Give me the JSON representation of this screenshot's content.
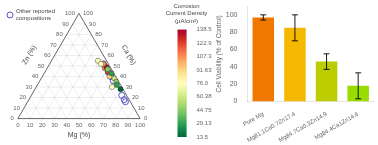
{
  "chart_data": [
    {
      "type": "ternary",
      "axes": {
        "mg": {
          "label": "Mg (%)",
          "lim": [
            0,
            100
          ],
          "ticks": [
            0,
            10,
            20,
            30,
            40,
            50,
            60,
            70,
            80,
            90,
            100
          ]
        },
        "zn": {
          "label": "Zn (%)",
          "lim": [
            0,
            100
          ],
          "ticks": [
            0,
            10,
            20,
            30,
            40,
            50,
            60,
            70,
            80,
            90,
            100
          ]
        },
        "ca": {
          "label": "Ca (%)",
          "lim": [
            0,
            100
          ],
          "ticks": [
            0,
            10,
            20,
            30,
            40,
            50,
            60,
            70,
            80,
            90,
            100
          ]
        }
      },
      "grid": true,
      "legend": "upper left",
      "series": [
        {
          "marker": "circle",
          "values": [
            {
              "mg": 47,
              "ca": 5,
              "zn": 48,
              "value": 107.3
            },
            {
              "mg": 52,
              "ca": 4,
              "zn": 44,
              "value": 122.9
            },
            {
              "mg": 55,
              "ca": 5,
              "zn": 40,
              "value": 91.63
            },
            {
              "mg": 48,
              "ca": 3,
              "zn": 49,
              "value": 138.5
            },
            {
              "mg": 44,
              "ca": 4,
              "zn": 52,
              "value": 107.3
            },
            {
              "mg": 60,
              "ca": 2,
              "zn": 38,
              "value": 60.38
            },
            {
              "mg": 63,
              "ca": 2,
              "zn": 35,
              "value": 44.75
            },
            {
              "mg": 55,
              "ca": 2,
              "zn": 43,
              "value": 29.13
            },
            {
              "mg": 50,
              "ca": 3,
              "zn": 47,
              "value": 44.75
            },
            {
              "mg": 65,
              "ca": 3,
              "zn": 32,
              "value": 29.13
            },
            {
              "mg": 70,
              "ca": 2,
              "zn": 28,
              "value": 13.5
            },
            {
              "mg": 38,
              "ca": 7,
              "zn": 55,
              "value": 76.0
            },
            {
              "mg": 42,
              "ca": 6,
              "zn": 52,
              "value": 76.0
            },
            {
              "mg": 62,
              "ca": 8,
              "zn": 30,
              "value": 76.0
            }
          ]
        },
        {
          "name": "Other reported\ncompositions",
          "color": "#5555CC",
          "marker": "open_circle",
          "values": [
            {
              "mg": 44,
              "ca": 4,
              "zn": 52
            },
            {
              "mg": 48,
              "ca": 4,
              "zn": 48
            },
            {
              "mg": 52,
              "ca": 4,
              "zn": 44
            },
            {
              "mg": 56,
              "ca": 4,
              "zn": 40
            },
            {
              "mg": 60,
              "ca": 4,
              "zn": 36
            },
            {
              "mg": 74,
              "ca": 4,
              "zn": 22
            },
            {
              "mg": 78,
              "ca": 4,
              "zn": 18
            },
            {
              "mg": 80,
              "ca": 4,
              "zn": 16
            }
          ]
        }
      ],
      "colorbar": {
        "title": "Corrosion\nCurrent Density\n(μA/cm²)",
        "lim": [
          13.5,
          138.5
        ],
        "ticks": [
          13.5,
          29.13,
          44.75,
          60.38,
          {
            "value": 76.0,
            "label": "76.0"
          },
          91.63,
          107.3,
          122.9,
          138.5
        ]
      }
    },
    {
      "type": "bar",
      "categories": [
        "Pure Mg",
        "Mg81.1Ca0.7Zn17.4",
        "Mg84.7Ca0.3Zn14.9",
        "Mg84.4Ca1Zn14.6"
      ],
      "values": [
        97.0,
        85.0,
        46.0,
        18.0
      ],
      "errors": [
        3.0,
        15.0,
        9.0,
        15.0
      ],
      "colors": [
        "#F07800",
        "#F5B800",
        "#BBCC00",
        "#99DD00"
      ],
      "ylabel": "Cell Viability (% of Control)",
      "ylim": [
        0,
        110
      ],
      "yticks": [
        0,
        20,
        40,
        60,
        80,
        100
      ],
      "grid": false
    }
  ]
}
